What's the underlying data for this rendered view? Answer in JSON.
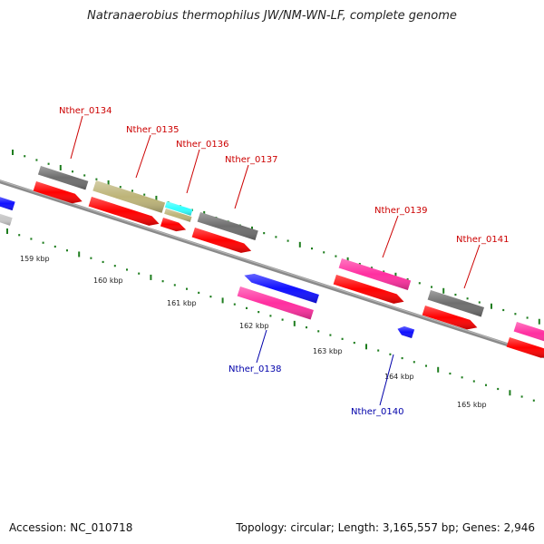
{
  "title": "Natranaerobius thermophilus JW/NM-WN-LF, complete genome",
  "footer": {
    "accession": "Accession: NC_010718",
    "topology": "Topology: circular; Length: 3,165,557 bp; Genes: 2,946"
  },
  "colors": {
    "background": "#ffffff",
    "backbone": "#8a8a8a",
    "tick": "#1e7d1e",
    "forward_label": "#cc0000",
    "reverse_label": "#0000aa",
    "red": "#ff0000",
    "gray": "#6e6e6e",
    "olive": "#bdb478",
    "cyan": "#33ffff",
    "magenta": "#ff2fa0",
    "blue": "#1010ff",
    "lightgray": "#c8c8c8"
  },
  "ticks": [
    "159 kbp",
    "160 kbp",
    "161 kbp",
    "162 kbp",
    "163 kbp",
    "164 kbp",
    "165 kbp"
  ],
  "genes": [
    {
      "label": "Nther_0134",
      "strand": "+"
    },
    {
      "label": "Nther_0135",
      "strand": "+"
    },
    {
      "label": "Nther_0136",
      "strand": "+"
    },
    {
      "label": "Nther_0137",
      "strand": "+"
    },
    {
      "label": "Nther_0138",
      "strand": "-"
    },
    {
      "label": "Nther_0139",
      "strand": "+"
    },
    {
      "label": "Nther_0140",
      "strand": "-"
    },
    {
      "label": "Nther_0141",
      "strand": "+"
    }
  ]
}
